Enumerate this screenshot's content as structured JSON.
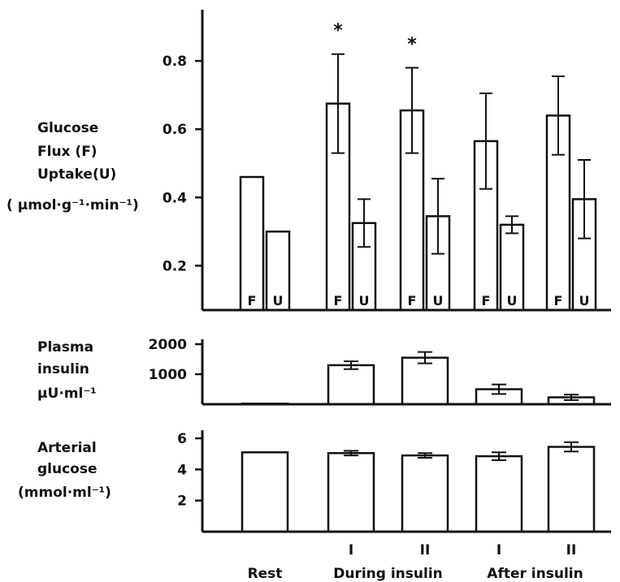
{
  "chart_data": [
    {
      "type": "bar",
      "ylabel": [
        "Glucose",
        "Flux (F)",
        "Uptake(U)",
        "( µmol·g⁻¹·min⁻¹)"
      ],
      "ylim": [
        0.07,
        0.95
      ],
      "yticks": [
        {
          "value": 0.2,
          "label": "0.2"
        },
        {
          "value": 0.4,
          "label": "0.4"
        },
        {
          "value": 0.6,
          "label": "0.6"
        },
        {
          "value": 0.8,
          "label": "0.8"
        }
      ],
      "series_labels": [
        "F",
        "U"
      ],
      "groups": [
        {
          "F": {
            "value": 0.46,
            "err": null,
            "star": false
          },
          "U": {
            "value": 0.3,
            "err": null,
            "star": false
          }
        },
        {
          "F": {
            "value": 0.675,
            "err": 0.145,
            "star": true
          },
          "U": {
            "value": 0.325,
            "err": 0.07,
            "star": false
          }
        },
        {
          "F": {
            "value": 0.655,
            "err": 0.125,
            "star": true
          },
          "U": {
            "value": 0.345,
            "err": 0.11,
            "star": false
          }
        },
        {
          "F": {
            "value": 0.565,
            "err": 0.14,
            "star": false
          },
          "U": {
            "value": 0.32,
            "err": 0.025,
            "star": false
          }
        },
        {
          "F": {
            "value": 0.64,
            "err": 0.115,
            "star": false
          },
          "U": {
            "value": 0.395,
            "err": 0.115,
            "star": false
          }
        }
      ],
      "asterisk": "*"
    },
    {
      "type": "bar",
      "ylabel": [
        "Plasma",
        "insulin",
        "µU·ml⁻¹"
      ],
      "ylim": [
        0,
        2000
      ],
      "yticks": [
        {
          "value": 1000,
          "label": "1000"
        },
        {
          "value": 2000,
          "label": "2000"
        }
      ],
      "values": [
        20,
        1300,
        1550,
        500,
        230
      ],
      "errors": [
        null,
        130,
        190,
        160,
        90
      ]
    },
    {
      "type": "bar",
      "ylabel": [
        "Arterial",
        "glucose",
        "(mmol·ml⁻¹)"
      ],
      "ylim": [
        0,
        6
      ],
      "yticks": [
        {
          "value": 2,
          "label": "2"
        },
        {
          "value": 4,
          "label": "4"
        },
        {
          "value": 6,
          "label": "6"
        }
      ],
      "values": [
        5.1,
        5.05,
        4.9,
        4.85,
        5.45
      ],
      "errors": [
        null,
        0.15,
        0.15,
        0.25,
        0.3
      ]
    }
  ],
  "x_axis": {
    "roman": [
      "",
      "I",
      "II",
      "I",
      "II"
    ],
    "labels": [
      {
        "text": "Rest",
        "group": 0
      },
      {
        "text": "During insulin",
        "group": 1.5
      },
      {
        "text": "After  insulin",
        "group": 3.5
      }
    ]
  }
}
